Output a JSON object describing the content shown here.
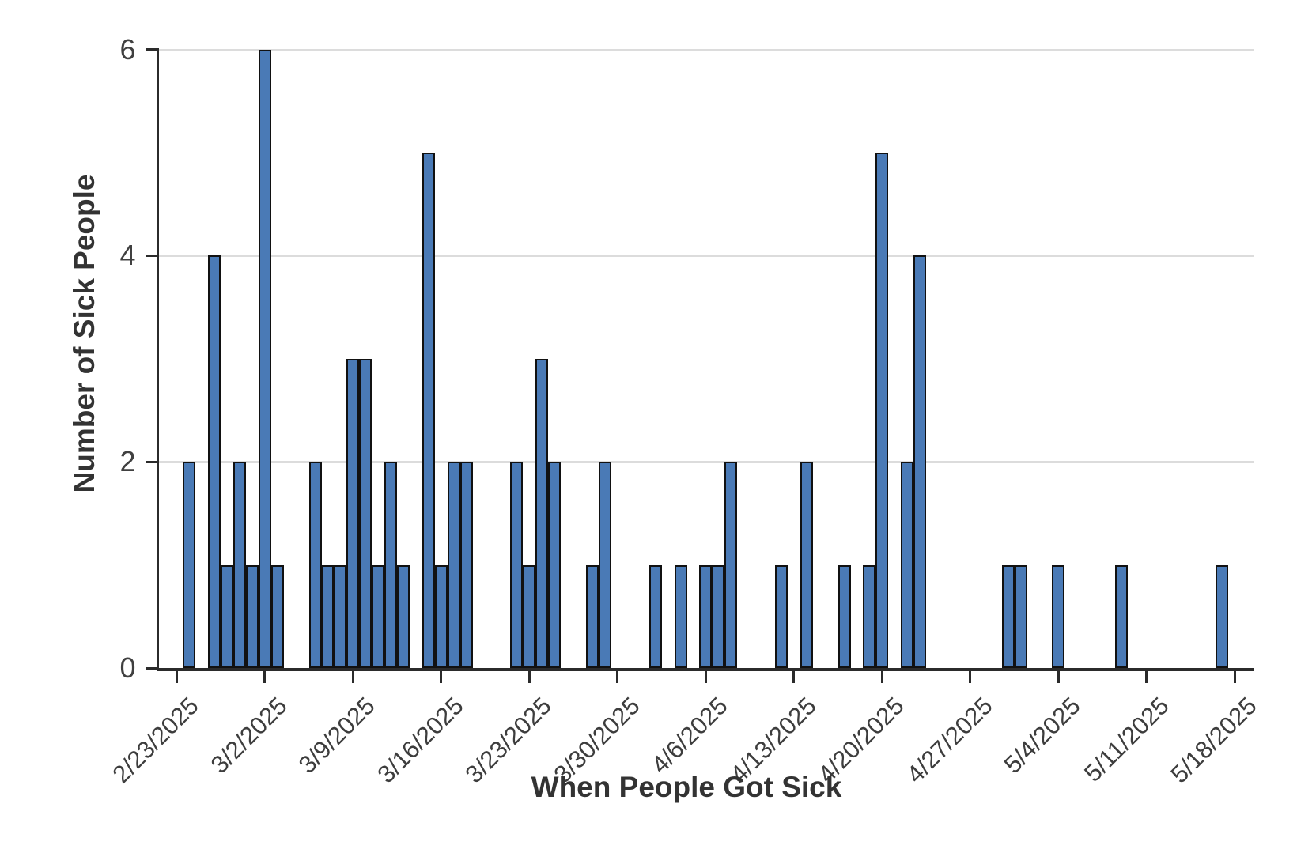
{
  "page": {
    "background": "#ffffff"
  },
  "chart_data": {
    "type": "bar",
    "title": "",
    "xlabel": "When People Got Sick",
    "ylabel": "Number of Sick People",
    "ylim": [
      0,
      6
    ],
    "y_ticks": [
      0,
      2,
      4,
      6
    ],
    "grid": "horizontal-at-2-4-6",
    "legend": "none",
    "bar_color": "#4a7ab6",
    "bar_border_color": "#111111",
    "x_tick_labels": [
      "2/23/2025",
      "3/2/2025",
      "3/9/2025",
      "3/16/2025",
      "3/23/2025",
      "3/30/2025",
      "4/6/2025",
      "4/13/2025",
      "4/20/2025",
      "4/27/2025",
      "5/4/2025",
      "5/11/2025",
      "5/18/2025"
    ],
    "points": [
      {
        "date": "2/24/2025",
        "count": 2
      },
      {
        "date": "2/26/2025",
        "count": 4
      },
      {
        "date": "2/27/2025",
        "count": 1
      },
      {
        "date": "2/28/2025",
        "count": 2
      },
      {
        "date": "3/1/2025",
        "count": 1
      },
      {
        "date": "3/2/2025",
        "count": 6
      },
      {
        "date": "3/3/2025",
        "count": 1
      },
      {
        "date": "3/6/2025",
        "count": 2
      },
      {
        "date": "3/7/2025",
        "count": 1
      },
      {
        "date": "3/8/2025",
        "count": 1
      },
      {
        "date": "3/9/2025",
        "count": 3
      },
      {
        "date": "3/10/2025",
        "count": 3
      },
      {
        "date": "3/11/2025",
        "count": 1
      },
      {
        "date": "3/12/2025",
        "count": 2
      },
      {
        "date": "3/13/2025",
        "count": 1
      },
      {
        "date": "3/15/2025",
        "count": 5
      },
      {
        "date": "3/16/2025",
        "count": 1
      },
      {
        "date": "3/17/2025",
        "count": 2
      },
      {
        "date": "3/18/2025",
        "count": 2
      },
      {
        "date": "3/22/2025",
        "count": 2
      },
      {
        "date": "3/23/2025",
        "count": 1
      },
      {
        "date": "3/24/2025",
        "count": 3
      },
      {
        "date": "3/25/2025",
        "count": 2
      },
      {
        "date": "3/28/2025",
        "count": 1
      },
      {
        "date": "3/29/2025",
        "count": 2
      },
      {
        "date": "4/2/2025",
        "count": 1
      },
      {
        "date": "4/4/2025",
        "count": 1
      },
      {
        "date": "4/6/2025",
        "count": 1
      },
      {
        "date": "4/7/2025",
        "count": 1
      },
      {
        "date": "4/8/2025",
        "count": 2
      },
      {
        "date": "4/12/2025",
        "count": 1
      },
      {
        "date": "4/14/2025",
        "count": 2
      },
      {
        "date": "4/17/2025",
        "count": 1
      },
      {
        "date": "4/19/2025",
        "count": 1
      },
      {
        "date": "4/20/2025",
        "count": 5
      },
      {
        "date": "4/22/2025",
        "count": 2
      },
      {
        "date": "4/23/2025",
        "count": 4
      },
      {
        "date": "4/30/2025",
        "count": 1
      },
      {
        "date": "5/1/2025",
        "count": 1
      },
      {
        "date": "5/4/2025",
        "count": 1
      },
      {
        "date": "5/9/2025",
        "count": 1
      },
      {
        "date": "5/17/2025",
        "count": 1
      }
    ]
  }
}
